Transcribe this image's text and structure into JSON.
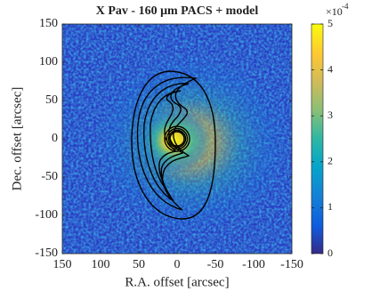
{
  "chart_data": {
    "type": "heatmap",
    "title": "X Pav - 160 μm PACS + model",
    "x_label": "R.A. offset [arcsec]",
    "y_label": "Dec. offset [arcsec]",
    "xlim": [
      150,
      -150
    ],
    "xticks": [
      150,
      100,
      50,
      0,
      -50,
      -100,
      -150
    ],
    "ylim": [
      -150,
      150
    ],
    "yticks": [
      -150,
      -100,
      -50,
      0,
      50,
      100,
      150
    ],
    "colorbar": {
      "lim": [
        0,
        5
      ],
      "ticks": [
        0,
        1,
        2,
        3,
        4,
        5
      ],
      "multiplier": "×10",
      "exponent": "-4"
    }
  }
}
